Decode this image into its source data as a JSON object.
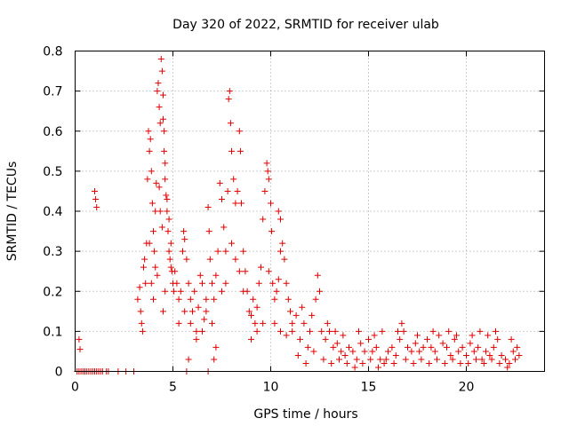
{
  "chart_data": {
    "type": "scatter",
    "title": "Day 320 of 2022, SRMTID for receiver ulab",
    "xlabel": "GPS time / hours",
    "ylabel": "SRMTID / TECUs",
    "xlim": [
      0,
      24
    ],
    "ylim": [
      0,
      0.8
    ],
    "xticks": [
      0,
      5,
      10,
      15,
      20
    ],
    "yticks": [
      0,
      0.1,
      0.2,
      0.3,
      0.4,
      0.5,
      0.6,
      0.7,
      0.8
    ],
    "xtick_labels": [
      "0",
      "5",
      "10",
      "15",
      "20"
    ],
    "ytick_labels": [
      "0",
      "0.1",
      "0.2",
      "0.3",
      "0.4",
      "0.5",
      "0.6",
      "0.7",
      "0.8"
    ],
    "grid": true,
    "marker": "plus",
    "series": [
      {
        "name": "SRMTID",
        "color": "#e00000",
        "points": [
          [
            0.1,
            0
          ],
          [
            0.2,
            0
          ],
          [
            0.3,
            0
          ],
          [
            0.4,
            0
          ],
          [
            0.5,
            0
          ],
          [
            0.6,
            0
          ],
          [
            0.7,
            0
          ],
          [
            0.8,
            0
          ],
          [
            0.9,
            0
          ],
          [
            1.0,
            0
          ],
          [
            1.1,
            0
          ],
          [
            1.2,
            0
          ],
          [
            1.3,
            0
          ],
          [
            1.4,
            0
          ],
          [
            1.6,
            0
          ],
          [
            1.7,
            0
          ],
          [
            2.2,
            0
          ],
          [
            2.6,
            0
          ],
          [
            3.0,
            0
          ],
          [
            5.7,
            0
          ],
          [
            6.8,
            0
          ],
          [
            0.2,
            0.08
          ],
          [
            0.25,
            0.055
          ],
          [
            1.0,
            0.45
          ],
          [
            1.05,
            0.43
          ],
          [
            1.1,
            0.41
          ],
          [
            3.2,
            0.18
          ],
          [
            3.3,
            0.21
          ],
          [
            3.35,
            0.15
          ],
          [
            3.4,
            0.12
          ],
          [
            3.45,
            0.1
          ],
          [
            3.5,
            0.26
          ],
          [
            3.55,
            0.28
          ],
          [
            3.6,
            0.22
          ],
          [
            3.65,
            0.32
          ],
          [
            3.7,
            0.48
          ],
          [
            3.75,
            0.6
          ],
          [
            3.8,
            0.55
          ],
          [
            3.85,
            0.58
          ],
          [
            3.9,
            0.5
          ],
          [
            3.95,
            0.42
          ],
          [
            4.0,
            0.35
          ],
          [
            4.05,
            0.3
          ],
          [
            4.1,
            0.4
          ],
          [
            4.15,
            0.47
          ],
          [
            4.2,
            0.7
          ],
          [
            4.25,
            0.72
          ],
          [
            4.3,
            0.66
          ],
          [
            4.35,
            0.62
          ],
          [
            4.4,
            0.78
          ],
          [
            4.45,
            0.75
          ],
          [
            4.5,
            0.69
          ],
          [
            4.55,
            0.6
          ],
          [
            4.6,
            0.52
          ],
          [
            4.65,
            0.44
          ],
          [
            4.7,
            0.4
          ],
          [
            4.75,
            0.35
          ],
          [
            4.8,
            0.3
          ],
          [
            4.85,
            0.28
          ],
          [
            4.9,
            0.26
          ],
          [
            4.95,
            0.25
          ],
          [
            5.0,
            0.22
          ],
          [
            5.05,
            0.2
          ],
          [
            3.8,
            0.32
          ],
          [
            3.9,
            0.22
          ],
          [
            4.0,
            0.18
          ],
          [
            4.1,
            0.26
          ],
          [
            4.2,
            0.24
          ],
          [
            4.3,
            0.46
          ],
          [
            4.35,
            0.4
          ],
          [
            4.45,
            0.36
          ],
          [
            4.5,
            0.63
          ],
          [
            4.55,
            0.55
          ],
          [
            4.6,
            0.48
          ],
          [
            4.7,
            0.43
          ],
          [
            4.8,
            0.38
          ],
          [
            4.9,
            0.32
          ],
          [
            4.6,
            0.2
          ],
          [
            4.5,
            0.15
          ],
          [
            5.1,
            0.25
          ],
          [
            5.2,
            0.22
          ],
          [
            5.3,
            0.18
          ],
          [
            5.4,
            0.2
          ],
          [
            5.5,
            0.3
          ],
          [
            5.55,
            0.35
          ],
          [
            5.6,
            0.33
          ],
          [
            5.7,
            0.28
          ],
          [
            5.8,
            0.22
          ],
          [
            5.9,
            0.18
          ],
          [
            6.0,
            0.15
          ],
          [
            6.1,
            0.2
          ],
          [
            6.2,
            0.1
          ],
          [
            6.3,
            0.16
          ],
          [
            6.4,
            0.24
          ],
          [
            6.5,
            0.22
          ],
          [
            6.6,
            0.13
          ],
          [
            6.7,
            0.18
          ],
          [
            6.8,
            0.41
          ],
          [
            6.85,
            0.35
          ],
          [
            6.9,
            0.28
          ],
          [
            7.0,
            0.22
          ],
          [
            7.1,
            0.18
          ],
          [
            7.2,
            0.24
          ],
          [
            7.3,
            0.3
          ],
          [
            7.4,
            0.47
          ],
          [
            7.5,
            0.43
          ],
          [
            7.6,
            0.36
          ],
          [
            7.7,
            0.3
          ],
          [
            7.8,
            0.45
          ],
          [
            7.85,
            0.68
          ],
          [
            7.9,
            0.7
          ],
          [
            7.95,
            0.62
          ],
          [
            8.0,
            0.55
          ],
          [
            8.1,
            0.48
          ],
          [
            8.2,
            0.42
          ],
          [
            8.3,
            0.45
          ],
          [
            8.4,
            0.6
          ],
          [
            8.45,
            0.55
          ],
          [
            8.5,
            0.42
          ],
          [
            8.6,
            0.3
          ],
          [
            8.7,
            0.25
          ],
          [
            8.8,
            0.2
          ],
          [
            5.3,
            0.12
          ],
          [
            5.6,
            0.15
          ],
          [
            5.9,
            0.12
          ],
          [
            6.2,
            0.08
          ],
          [
            6.5,
            0.1
          ],
          [
            6.7,
            0.15
          ],
          [
            7.0,
            0.12
          ],
          [
            7.2,
            0.06
          ],
          [
            7.5,
            0.2
          ],
          [
            7.7,
            0.22
          ],
          [
            8.0,
            0.32
          ],
          [
            8.2,
            0.28
          ],
          [
            8.4,
            0.25
          ],
          [
            8.6,
            0.2
          ],
          [
            5.8,
            0.03
          ],
          [
            7.1,
            0.03
          ],
          [
            8.9,
            0.15
          ],
          [
            9.0,
            0.14
          ],
          [
            9.1,
            0.18
          ],
          [
            9.2,
            0.12
          ],
          [
            9.3,
            0.16
          ],
          [
            9.4,
            0.22
          ],
          [
            9.5,
            0.26
          ],
          [
            9.6,
            0.38
          ],
          [
            9.7,
            0.45
          ],
          [
            9.8,
            0.52
          ],
          [
            9.85,
            0.5
          ],
          [
            9.9,
            0.48
          ],
          [
            10.0,
            0.42
          ],
          [
            10.05,
            0.35
          ],
          [
            10.1,
            0.22
          ],
          [
            10.2,
            0.18
          ],
          [
            10.3,
            0.2
          ],
          [
            10.4,
            0.23
          ],
          [
            10.5,
            0.3
          ],
          [
            10.6,
            0.32
          ],
          [
            10.7,
            0.28
          ],
          [
            10.8,
            0.22
          ],
          [
            10.9,
            0.18
          ],
          [
            11.0,
            0.15
          ],
          [
            9.0,
            0.08
          ],
          [
            9.3,
            0.1
          ],
          [
            9.6,
            0.12
          ],
          [
            9.9,
            0.25
          ],
          [
            10.2,
            0.12
          ],
          [
            10.5,
            0.1
          ],
          [
            10.8,
            0.09
          ],
          [
            11.1,
            0.12
          ],
          [
            10.4,
            0.4
          ],
          [
            10.5,
            0.38
          ],
          [
            11.1,
            0.1
          ],
          [
            11.3,
            0.14
          ],
          [
            11.5,
            0.08
          ],
          [
            11.7,
            0.12
          ],
          [
            11.9,
            0.06
          ],
          [
            12.1,
            0.14
          ],
          [
            12.3,
            0.18
          ],
          [
            12.4,
            0.24
          ],
          [
            12.5,
            0.2
          ],
          [
            12.6,
            0.1
          ],
          [
            12.8,
            0.08
          ],
          [
            13.0,
            0.1
          ],
          [
            13.2,
            0.06
          ],
          [
            13.4,
            0.07
          ],
          [
            13.6,
            0.05
          ],
          [
            13.8,
            0.04
          ],
          [
            14.0,
            0.06
          ],
          [
            14.2,
            0.05
          ],
          [
            14.4,
            0.03
          ],
          [
            14.6,
            0.07
          ],
          [
            14.8,
            0.05
          ],
          [
            15.0,
            0.08
          ],
          [
            15.2,
            0.05
          ],
          [
            15.4,
            0.06
          ],
          [
            15.6,
            0.03
          ],
          [
            15.8,
            0.02
          ],
          [
            16.0,
            0.05
          ],
          [
            16.2,
            0.06
          ],
          [
            16.4,
            0.04
          ],
          [
            16.6,
            0.08
          ],
          [
            16.7,
            0.12
          ],
          [
            16.8,
            0.1
          ],
          [
            17.0,
            0.06
          ],
          [
            17.2,
            0.05
          ],
          [
            17.4,
            0.07
          ],
          [
            17.6,
            0.05
          ],
          [
            17.8,
            0.06
          ],
          [
            18.0,
            0.08
          ],
          [
            18.2,
            0.06
          ],
          [
            18.4,
            0.05
          ],
          [
            18.6,
            0.09
          ],
          [
            18.8,
            0.07
          ],
          [
            19.0,
            0.06
          ],
          [
            19.2,
            0.04
          ],
          [
            19.4,
            0.08
          ],
          [
            19.6,
            0.05
          ],
          [
            19.8,
            0.06
          ],
          [
            20.0,
            0.04
          ],
          [
            20.2,
            0.07
          ],
          [
            20.4,
            0.05
          ],
          [
            20.6,
            0.06
          ],
          [
            20.8,
            0.03
          ],
          [
            21.0,
            0.05
          ],
          [
            21.2,
            0.04
          ],
          [
            21.4,
            0.06
          ],
          [
            21.6,
            0.08
          ],
          [
            21.8,
            0.04
          ],
          [
            22.0,
            0.03
          ],
          [
            22.2,
            0.02
          ],
          [
            22.4,
            0.05
          ],
          [
            22.6,
            0.06
          ],
          [
            22.7,
            0.04
          ],
          [
            11.4,
            0.04
          ],
          [
            11.8,
            0.02
          ],
          [
            12.2,
            0.05
          ],
          [
            12.7,
            0.03
          ],
          [
            13.1,
            0.02
          ],
          [
            13.5,
            0.03
          ],
          [
            13.9,
            0.02
          ],
          [
            14.3,
            0.01
          ],
          [
            14.7,
            0.02
          ],
          [
            15.1,
            0.03
          ],
          [
            15.5,
            0.01
          ],
          [
            15.9,
            0.03
          ],
          [
            16.3,
            0.02
          ],
          [
            16.9,
            0.03
          ],
          [
            17.3,
            0.02
          ],
          [
            17.7,
            0.03
          ],
          [
            18.1,
            0.02
          ],
          [
            18.5,
            0.03
          ],
          [
            18.9,
            0.02
          ],
          [
            19.3,
            0.03
          ],
          [
            19.7,
            0.02
          ],
          [
            20.1,
            0.02
          ],
          [
            20.5,
            0.03
          ],
          [
            20.9,
            0.02
          ],
          [
            21.3,
            0.03
          ],
          [
            21.7,
            0.02
          ],
          [
            22.1,
            0.01
          ],
          [
            22.5,
            0.03
          ],
          [
            11.6,
            0.16
          ],
          [
            12.0,
            0.1
          ],
          [
            12.9,
            0.12
          ],
          [
            13.3,
            0.1
          ],
          [
            13.7,
            0.09
          ],
          [
            14.5,
            0.1
          ],
          [
            15.3,
            0.09
          ],
          [
            15.7,
            0.1
          ],
          [
            16.5,
            0.1
          ],
          [
            17.5,
            0.09
          ],
          [
            18.3,
            0.1
          ],
          [
            19.1,
            0.1
          ],
          [
            19.5,
            0.09
          ],
          [
            20.3,
            0.09
          ],
          [
            20.7,
            0.1
          ],
          [
            21.1,
            0.09
          ],
          [
            21.5,
            0.1
          ],
          [
            22.3,
            0.08
          ]
        ]
      }
    ]
  }
}
